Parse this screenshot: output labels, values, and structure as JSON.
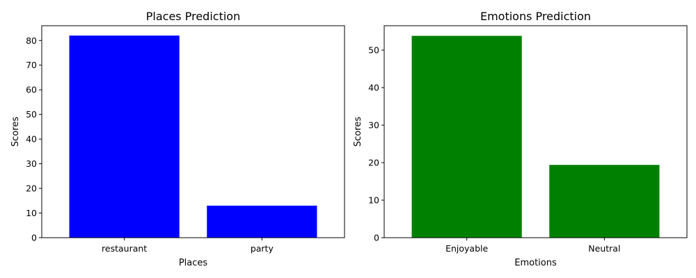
{
  "chart_data": [
    {
      "type": "bar",
      "title": "Places Prediction",
      "xlabel": "Places",
      "ylabel": "Scores",
      "categories": [
        "restaurant",
        "party"
      ],
      "values": [
        82.0,
        13.0
      ],
      "ylim": [
        0,
        86
      ],
      "yticks": [
        0,
        10,
        20,
        30,
        40,
        50,
        60,
        70,
        80
      ],
      "color": "#0000ff",
      "grid": false
    },
    {
      "type": "bar",
      "title": "Emotions Prediction",
      "xlabel": "Emotions",
      "ylabel": "Scores",
      "categories": [
        "Enjoyable",
        "Neutral"
      ],
      "values": [
        53.8,
        19.4
      ],
      "ylim": [
        0,
        56.5
      ],
      "yticks": [
        0,
        10,
        20,
        30,
        40,
        50
      ],
      "color": "#008000",
      "grid": false
    }
  ]
}
